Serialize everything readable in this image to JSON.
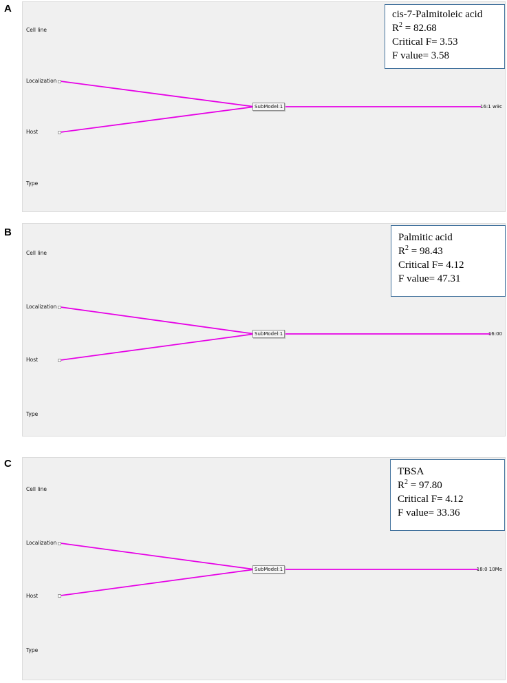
{
  "colors": {
    "panel_background": "#f0f0f0",
    "connector_line": "#e600e6",
    "stats_box_border": "#41719c"
  },
  "panels": [
    {
      "letter": "A",
      "factors": [
        "Cell line",
        "Localization",
        "Host",
        "Type"
      ],
      "submodel_label": "SubModel:1",
      "output_label": "16:1 w9c",
      "stats": {
        "name": "cis-7-Palmitoleic acid",
        "r2_prefix": "R",
        "r2_value": "= 82.68",
        "critical_f": "Critical F= 3.53",
        "f_value": "F value= 3.58"
      }
    },
    {
      "letter": "B",
      "factors": [
        "Cell line",
        "Localization",
        "Host",
        "Type"
      ],
      "submodel_label": "SubModel:1",
      "output_label": "16:00",
      "stats": {
        "name": "Palmitic  acid",
        "r2_prefix": "R",
        "r2_value": "= 98.43",
        "critical_f": "Critical  F= 4.12",
        "f_value": "F value=  47.31"
      }
    },
    {
      "letter": "C",
      "factors": [
        "Cell line",
        "Localization",
        "Host",
        "Type"
      ],
      "submodel_label": "SubModel:1",
      "output_label": "18:0 10Me",
      "stats": {
        "name": "TBSA",
        "r2_prefix": "R",
        "r2_value": "= 97.80",
        "critical_f": "Critical  F= 4.12",
        "f_value": "F value=  33.36"
      }
    }
  ]
}
